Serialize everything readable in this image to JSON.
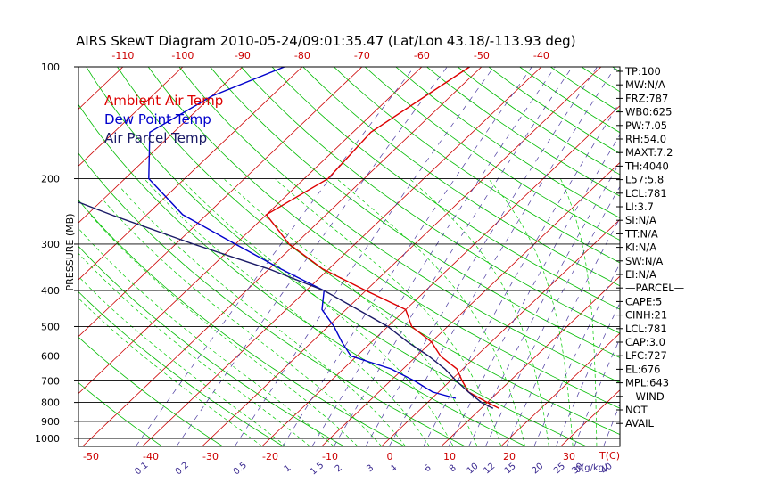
{
  "chart_data": {
    "type": "line",
    "title": "AIRS SkewT Diagram 2010-05-24/09:01:35.47 (Lat/Lon 43.18/-113.93 deg)",
    "ylabel": "PRESSURE (MB)",
    "y_scale": "log",
    "ylim": [
      1000,
      100
    ],
    "pressure_levels": [
      100,
      200,
      300,
      400,
      500,
      600,
      700,
      800,
      900,
      1000
    ],
    "top_temp_ticks": [
      -120,
      -110,
      -100,
      -90,
      -80,
      -70,
      -60,
      -50,
      -40
    ],
    "bottom_temp_ticks": [
      -50,
      -40,
      -30,
      -20,
      -10,
      0,
      10,
      20,
      30
    ],
    "bottom_temp_label": "T(C)",
    "mixing_ratio_ticks": [
      "0.1",
      "0.2",
      "0.5",
      "1",
      "1.5",
      "2",
      "3",
      "4",
      "6",
      "8",
      "10",
      "12",
      "15",
      "20",
      "25",
      "30",
      "40"
    ],
    "mixing_ratio_label": "g(g/kg)",
    "legend": [
      {
        "label": "Ambient Air Temp",
        "color": "#dd0000"
      },
      {
        "label": "Dew Point Temp",
        "color": "#0000cc"
      },
      {
        "label": "Air Parcel Temp",
        "color": "#1a1a66"
      }
    ],
    "series": [
      {
        "name": "Ambient Air Temp",
        "color": "#dd0000",
        "points": [
          [
            100,
            -52
          ],
          [
            150,
            -57
          ],
          [
            200,
            -56
          ],
          [
            250,
            -60
          ],
          [
            300,
            -51
          ],
          [
            350,
            -41
          ],
          [
            400,
            -30
          ],
          [
            450,
            -20
          ],
          [
            500,
            -16
          ],
          [
            550,
            -10
          ],
          [
            600,
            -6
          ],
          [
            650,
            -1
          ],
          [
            700,
            2
          ],
          [
            750,
            5
          ],
          [
            800,
            10
          ],
          [
            830,
            13
          ]
        ]
      },
      {
        "name": "Dew Point Temp",
        "color": "#0000cc",
        "points": [
          [
            100,
            -83
          ],
          [
            120,
            -90
          ],
          [
            150,
            -94
          ],
          [
            200,
            -86
          ],
          [
            250,
            -74
          ],
          [
            300,
            -60
          ],
          [
            350,
            -48
          ],
          [
            400,
            -37
          ],
          [
            450,
            -34
          ],
          [
            500,
            -29
          ],
          [
            550,
            -25
          ],
          [
            600,
            -21
          ],
          [
            650,
            -12
          ],
          [
            700,
            -6
          ],
          [
            750,
            -1
          ],
          [
            780,
            4
          ]
        ]
      },
      {
        "name": "Air Parcel Temp",
        "color": "#1a1a66",
        "points": [
          [
            100,
            -152
          ],
          [
            150,
            -129
          ],
          [
            200,
            -108
          ],
          [
            250,
            -86
          ],
          [
            300,
            -67
          ],
          [
            350,
            -50
          ],
          [
            400,
            -37
          ],
          [
            450,
            -28
          ],
          [
            500,
            -20
          ],
          [
            550,
            -14
          ],
          [
            600,
            -8
          ],
          [
            650,
            -3
          ],
          [
            700,
            1
          ],
          [
            750,
            5
          ],
          [
            800,
            9
          ],
          [
            830,
            12
          ]
        ]
      }
    ],
    "indices": [
      "TP:100",
      "MW:N/A",
      "FRZ:787",
      "WB0:625",
      "PW:7.05",
      "RH:54.0",
      "MAXT:7.2",
      "TH:4040",
      "L57:5.8",
      "LCL:781",
      "LI:3.7",
      "SI:N/A",
      "TT:N/A",
      "KI:N/A",
      "SW:N/A",
      "EI:N/A",
      "—PARCEL—",
      "CAPE:5",
      "CINH:21",
      "LCL:781",
      "CAP:3.0",
      "LFC:727",
      "EL:676",
      "MPL:643",
      "—WIND—",
      "NOT",
      "AVAIL"
    ]
  }
}
